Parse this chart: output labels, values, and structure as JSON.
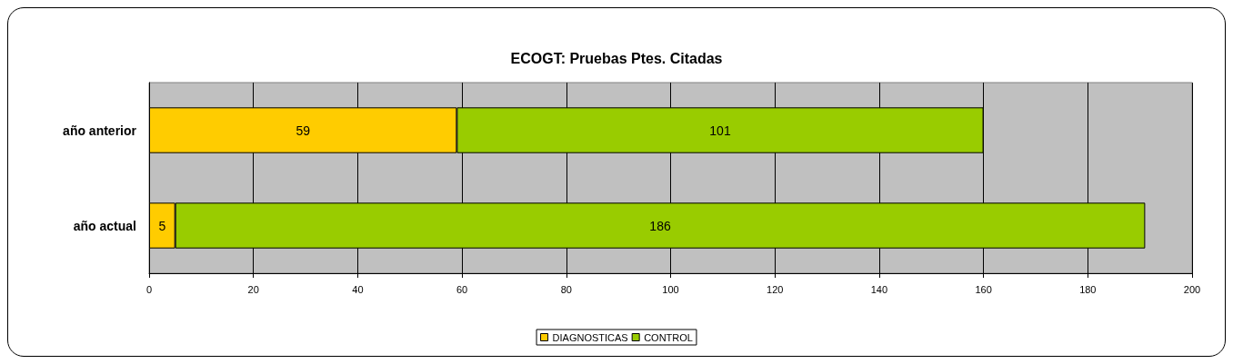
{
  "chart_data": {
    "type": "bar",
    "orientation": "horizontal",
    "stacked": true,
    "title": "ECOGT: Pruebas Ptes. Citadas",
    "categories": [
      "año anterior",
      "año actual"
    ],
    "series": [
      {
        "name": "DIAGNOSTICAS",
        "color": "#ffcc00",
        "values": [
          59,
          5
        ]
      },
      {
        "name": "CONTROL",
        "color": "#99cc00",
        "values": [
          101,
          186
        ]
      }
    ],
    "xlim": [
      0,
      200
    ],
    "xticks": [
      0,
      20,
      40,
      60,
      80,
      100,
      120,
      140,
      160,
      180,
      200
    ],
    "grid": "x",
    "legend": "bottom",
    "data_labels": true
  }
}
